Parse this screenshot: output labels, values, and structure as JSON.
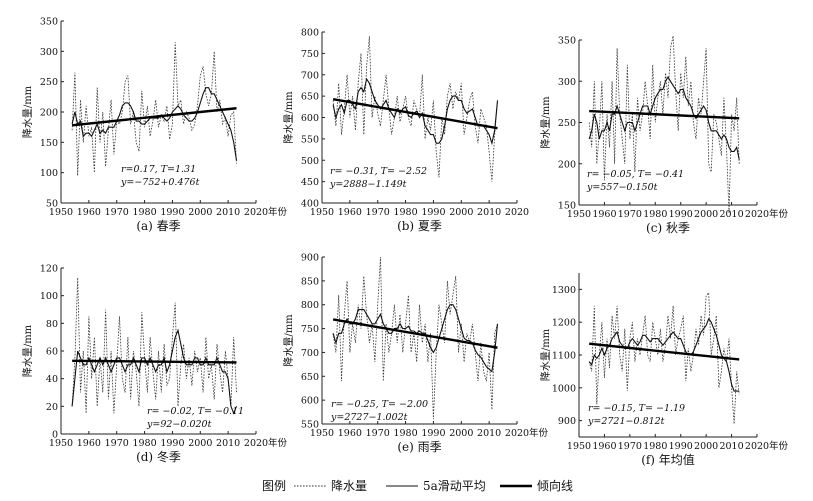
{
  "legend": {
    "title": "图例",
    "items": [
      {
        "label": "降水量",
        "style": "dotted"
      },
      {
        "label": "5a滑动平均",
        "style": "thin"
      },
      {
        "label": "倾向线",
        "style": "thick"
      }
    ]
  },
  "chart_data": [
    {
      "type": "line",
      "caption": "(a) 春季",
      "ylabel": "降水量/mm",
      "xlabel": "年份",
      "xlim": [
        1950,
        2020
      ],
      "xticks": [
        1950,
        1960,
        1970,
        1980,
        1990,
        2000,
        2010,
        2020
      ],
      "ylim": [
        50,
        350
      ],
      "yticks": [
        50,
        100,
        150,
        200,
        250,
        300,
        350
      ],
      "stats": [
        "r=0.17, T=1.31",
        "y=−752+0.476t"
      ],
      "trend": {
        "intercept": -752,
        "slope": 0.476
      },
      "x_start": 1954,
      "series": [
        {
          "name": "降水量",
          "style": "dotted",
          "values": [
            170,
            265,
            95,
            220,
            150,
            210,
            160,
            175,
            100,
            240,
            150,
            200,
            110,
            170,
            220,
            130,
            185,
            180,
            200,
            250,
            260,
            180,
            200,
            150,
            135,
            235,
            175,
            210,
            160,
            185,
            220,
            175,
            195,
            185,
            210,
            155,
            180,
            315,
            210,
            220,
            180,
            200,
            190,
            170,
            180,
            210,
            260,
            275,
            230,
            210,
            230,
            300,
            200,
            220,
            180,
            190,
            160,
            195,
            200,
            115
          ]
        },
        {
          "name": "5a滑动平均",
          "style": "thin",
          "values": [
            180,
            200,
            180,
            185,
            160,
            165,
            165,
            160,
            170,
            180,
            165,
            170,
            165,
            175,
            175,
            175,
            185,
            195,
            210,
            215,
            215,
            210,
            200,
            185,
            185,
            180,
            180,
            185,
            190,
            190,
            190,
            190,
            195,
            190,
            185,
            190,
            200,
            205,
            210,
            205,
            195,
            190,
            185,
            185,
            190,
            200,
            215,
            230,
            240,
            240,
            230,
            230,
            220,
            210,
            200,
            190,
            180,
            170,
            150,
            120
          ]
        }
      ]
    },
    {
      "type": "line",
      "caption": "(b) 夏季",
      "ylabel": "降水量/mm",
      "xlabel": "",
      "xlim": [
        1950,
        2020
      ],
      "xticks": [
        1950,
        1960,
        1970,
        1980,
        1990,
        2000,
        2010,
        2020
      ],
      "ylim": [
        400,
        800
      ],
      "yticks": [
        400,
        450,
        500,
        550,
        600,
        650,
        700,
        750,
        800
      ],
      "stats": [
        "r= −0.31, T= −2.52",
        "y=2888−1.149t"
      ],
      "trend": {
        "intercept": 2888,
        "slope": -1.149
      },
      "x_start": 1954,
      "series": [
        {
          "name": "降水量",
          "style": "dotted",
          "values": [
            640,
            580,
            680,
            560,
            620,
            700,
            600,
            650,
            570,
            680,
            750,
            560,
            720,
            790,
            600,
            650,
            610,
            580,
            640,
            700,
            620,
            560,
            600,
            650,
            590,
            620,
            650,
            600,
            580,
            640,
            620,
            600,
            700,
            550,
            600,
            570,
            640,
            520,
            460,
            600,
            560,
            650,
            680,
            620,
            660,
            640,
            680,
            560,
            600,
            640,
            660,
            580,
            540,
            620,
            600,
            580,
            520,
            450,
            560,
            640
          ]
        },
        {
          "name": "5a滑动平均",
          "style": "thin",
          "values": [
            630,
            600,
            620,
            630,
            610,
            640,
            640,
            630,
            620,
            660,
            670,
            660,
            690,
            680,
            660,
            640,
            630,
            620,
            630,
            640,
            620,
            610,
            600,
            620,
            610,
            620,
            625,
            605,
            600,
            610,
            615,
            600,
            610,
            580,
            570,
            560,
            560,
            540,
            540,
            550,
            580,
            620,
            640,
            650,
            650,
            640,
            640,
            620,
            610,
            615,
            620,
            600,
            580,
            580,
            580,
            570,
            560,
            540,
            570,
            640
          ]
        }
      ]
    },
    {
      "type": "line",
      "caption": "(c) 秋季",
      "ylabel": "降水量/mm",
      "xlabel": "年份",
      "xlim": [
        1950,
        2020
      ],
      "xticks": [
        1950,
        1960,
        1970,
        1980,
        1990,
        2000,
        2010,
        2020
      ],
      "ylim": [
        150,
        350
      ],
      "yticks": [
        150,
        200,
        250,
        300,
        350
      ],
      "stats": [
        "r= −0.05, T= −0.41",
        "y=557−0.150t"
      ],
      "trend": {
        "intercept": 557,
        "slope": -0.15
      },
      "x_start": 1954,
      "series": [
        {
          "name": "降水量",
          "style": "dotted",
          "values": [
            250,
            220,
            300,
            200,
            240,
            300,
            180,
            260,
            220,
            300,
            200,
            340,
            260,
            230,
            200,
            320,
            230,
            260,
            190,
            280,
            240,
            260,
            300,
            270,
            230,
            320,
            250,
            280,
            300,
            260,
            310,
            280,
            340,
            355,
            290,
            240,
            310,
            280,
            330,
            270,
            300,
            250,
            230,
            280,
            260,
            300,
            340,
            200,
            190,
            260,
            250,
            230,
            210,
            280,
            220,
            140,
            260,
            240,
            280,
            200
          ]
        },
        {
          "name": "5a滑动平均",
          "style": "thin",
          "values": [
            230,
            240,
            260,
            250,
            230,
            240,
            240,
            250,
            240,
            260,
            260,
            270,
            260,
            250,
            240,
            250,
            250,
            250,
            240,
            250,
            260,
            270,
            270,
            270,
            260,
            270,
            280,
            285,
            290,
            290,
            300,
            305,
            300,
            295,
            290,
            285,
            290,
            290,
            280,
            275,
            270,
            260,
            255,
            260,
            265,
            270,
            265,
            250,
            240,
            240,
            240,
            235,
            230,
            235,
            230,
            220,
            215,
            215,
            220,
            205
          ]
        }
      ]
    },
    {
      "type": "line",
      "caption": "(d) 冬季",
      "ylabel": "降水量/mm",
      "xlabel": "年份",
      "xlim": [
        1950,
        2020
      ],
      "xticks": [
        1950,
        1960,
        1970,
        1980,
        1990,
        2000,
        2010,
        2020
      ],
      "ylim": [
        0,
        120
      ],
      "yticks": [
        0,
        20,
        40,
        60,
        80,
        100,
        120
      ],
      "stats": [
        "r= −0.02, T= −0.11",
        "y=92−0.020t"
      ],
      "trend": {
        "intercept": 92,
        "slope": -0.02
      },
      "x_start": 1954,
      "series": [
        {
          "name": "降水量",
          "style": "dotted",
          "values": [
            20,
            55,
            113,
            30,
            60,
            15,
            85,
            40,
            70,
            20,
            55,
            30,
            90,
            25,
            60,
            15,
            50,
            85,
            40,
            30,
            70,
            25,
            60,
            45,
            20,
            88,
            55,
            30,
            70,
            45,
            25,
            60,
            30,
            65,
            35,
            40,
            70,
            95,
            20,
            50,
            65,
            40,
            55,
            35,
            60,
            45,
            55,
            30,
            70,
            40,
            50,
            25,
            65,
            45,
            30,
            60,
            40,
            20,
            70,
            30
          ]
        },
        {
          "name": "5a滑动平均",
          "style": "thin",
          "values": [
            20,
            40,
            60,
            55,
            50,
            50,
            55,
            50,
            45,
            50,
            55,
            50,
            55,
            50,
            45,
            50,
            55,
            55,
            50,
            45,
            50,
            50,
            55,
            50,
            45,
            55,
            55,
            50,
            55,
            50,
            45,
            50,
            50,
            55,
            45,
            50,
            60,
            70,
            75,
            65,
            55,
            50,
            50,
            50,
            55,
            55,
            50,
            50,
            55,
            50,
            50,
            50,
            55,
            50,
            45,
            45,
            40,
            20,
            15,
            20
          ]
        }
      ]
    },
    {
      "type": "line",
      "caption": "(e) 雨季",
      "ylabel": "降水量/mm",
      "xlabel": "年份",
      "xlim": [
        1950,
        2020
      ],
      "xticks": [
        1950,
        1960,
        1970,
        1980,
        1990,
        2000,
        2010,
        2020
      ],
      "ylim": [
        550,
        900
      ],
      "yticks": [
        550,
        600,
        650,
        700,
        750,
        800,
        850,
        900
      ],
      "stats": [
        "r= −0.25, T= −2.00",
        "y=2727−1.002t"
      ],
      "trend": {
        "intercept": 2727,
        "slope": -1.002
      },
      "x_start": 1954,
      "series": [
        {
          "name": "降水量",
          "style": "dotted",
          "values": [
            740,
            700,
            820,
            640,
            780,
            850,
            700,
            760,
            720,
            800,
            750,
            860,
            780,
            720,
            760,
            680,
            800,
            900,
            640,
            760,
            700,
            740,
            800,
            720,
            780,
            700,
            760,
            820,
            700,
            740,
            680,
            800,
            720,
            760,
            680,
            740,
            560,
            700,
            800,
            760,
            720,
            850,
            780,
            820,
            860,
            700,
            760,
            680,
            740,
            720,
            760,
            700,
            640,
            720,
            660,
            640,
            700,
            580,
            740,
            760
          ]
        },
        {
          "name": "5a滑动平均",
          "style": "thin",
          "values": [
            740,
            720,
            740,
            740,
            760,
            770,
            760,
            760,
            770,
            790,
            790,
            790,
            780,
            770,
            760,
            760,
            770,
            780,
            760,
            750,
            740,
            740,
            750,
            750,
            760,
            750,
            750,
            755,
            745,
            745,
            740,
            745,
            740,
            740,
            725,
            710,
            700,
            710,
            730,
            750,
            770,
            790,
            800,
            800,
            790,
            770,
            750,
            730,
            725,
            725,
            720,
            705,
            695,
            690,
            680,
            670,
            665,
            660,
            700,
            760
          ]
        }
      ]
    },
    {
      "type": "line",
      "caption": "(f) 年均值",
      "ylabel": "降水量/mm",
      "xlabel": "年份",
      "xlim": [
        1950,
        2020
      ],
      "xticks": [
        1950,
        1960,
        1970,
        1980,
        1990,
        2000,
        2010,
        2020
      ],
      "ylim": [
        850,
        1350
      ],
      "yticks": [
        900,
        1000,
        1100,
        1200,
        1300
      ],
      "stats": [
        "r= −0.15, T= −1.19",
        "y=2721−0.812t"
      ],
      "trend": {
        "intercept": 2721,
        "slope": -0.812
      },
      "x_start": 1954,
      "series": [
        {
          "name": "降水量",
          "style": "dotted",
          "values": [
            1080,
            1050,
            1250,
            950,
            1100,
            1200,
            1030,
            1150,
            1060,
            1220,
            1150,
            1250,
            1100,
            1050,
            1180,
            990,
            1150,
            1200,
            1080,
            1150,
            1100,
            1160,
            1220,
            1100,
            1080,
            1200,
            1150,
            1100,
            1180,
            1080,
            1130,
            1220,
            1150,
            1250,
            1100,
            1150,
            1180,
            1220,
            1020,
            1120,
            1050,
            1100,
            1180,
            1130,
            1220,
            1160,
            1280,
            1290,
            1100,
            1150,
            1220,
            1000,
            1050,
            1120,
            1080,
            1150,
            1000,
            890,
            1050,
            980
          ]
        },
        {
          "name": "5a滑动平均",
          "style": "thin",
          "values": [
            1080,
            1070,
            1100,
            1090,
            1100,
            1120,
            1100,
            1120,
            1130,
            1150,
            1160,
            1170,
            1140,
            1130,
            1120,
            1120,
            1140,
            1150,
            1140,
            1130,
            1140,
            1160,
            1160,
            1150,
            1140,
            1150,
            1150,
            1150,
            1140,
            1130,
            1140,
            1150,
            1160,
            1170,
            1160,
            1150,
            1150,
            1130,
            1110,
            1100,
            1100,
            1110,
            1130,
            1150,
            1170,
            1180,
            1190,
            1210,
            1200,
            1180,
            1160,
            1130,
            1100,
            1090,
            1080,
            1050,
            1010,
            990,
            990,
            990
          ]
        }
      ]
    }
  ]
}
